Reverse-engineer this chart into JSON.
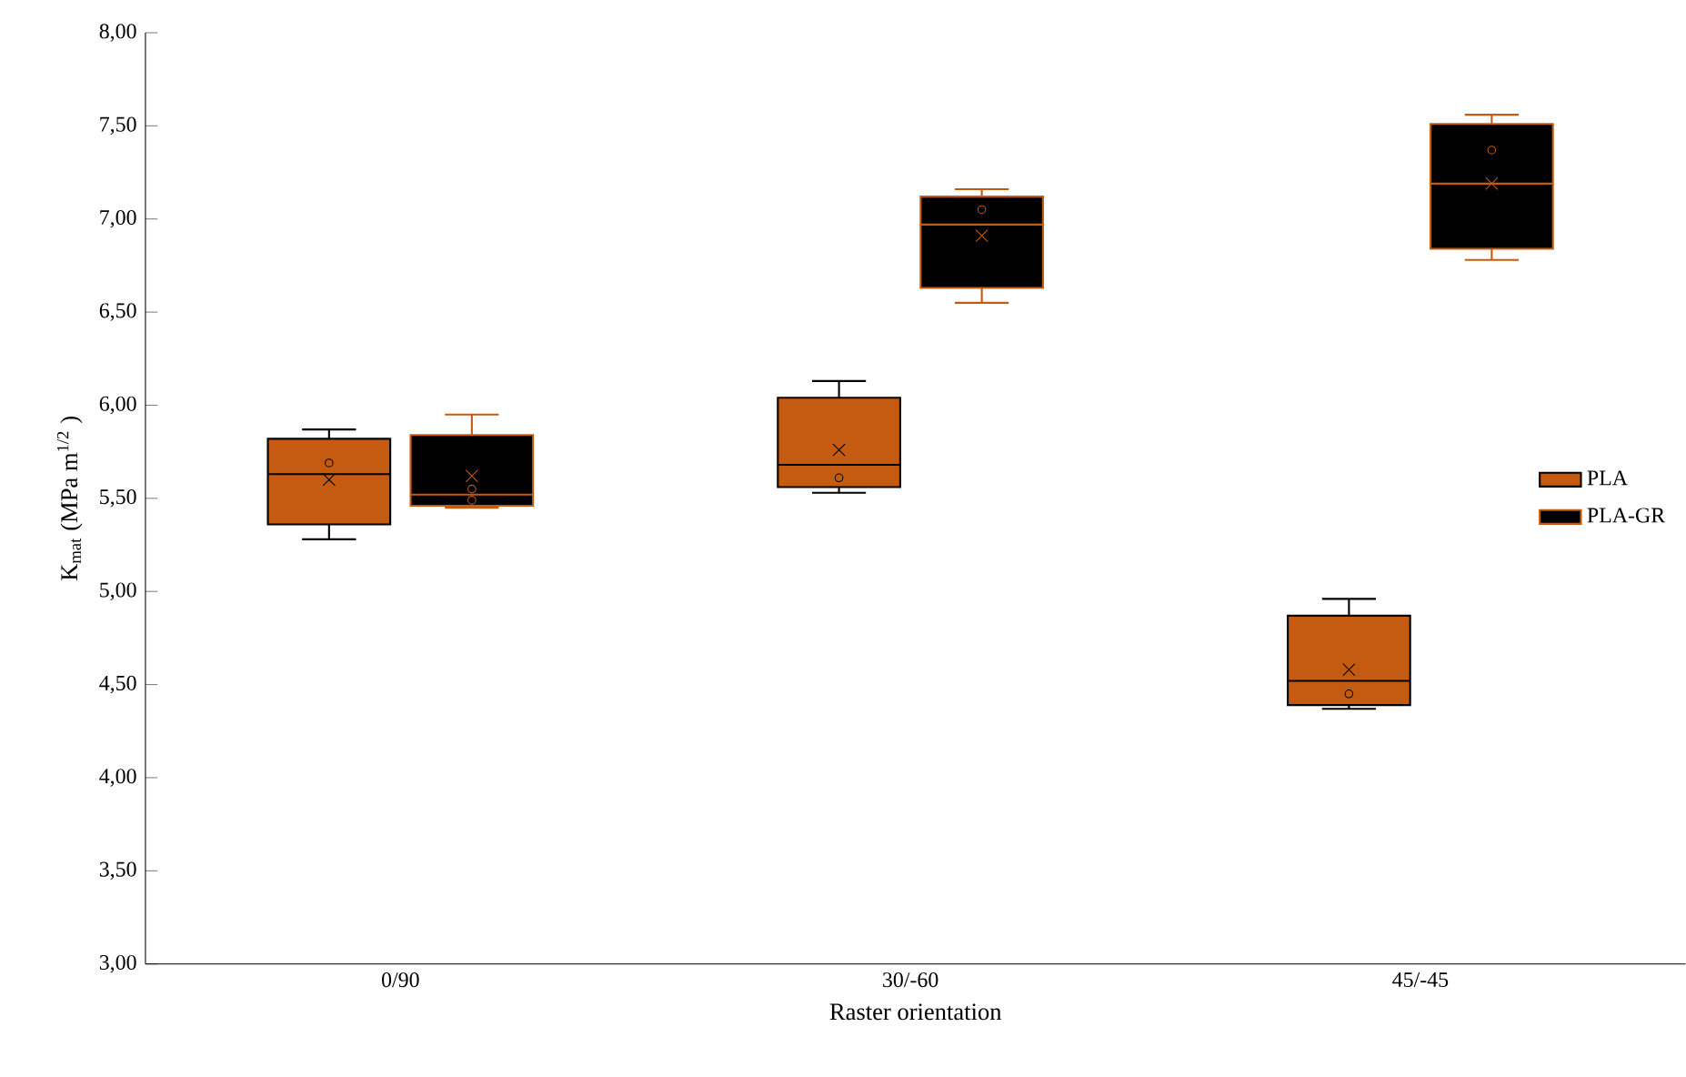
{
  "chart_data": {
    "type": "box",
    "xlabel": "Raster orientation",
    "ylabel": "K$_{mat}$ (MPa m$^{1/2}$ )",
    "categories": [
      "0/90",
      "30/-60",
      "45/-45"
    ],
    "ylim": [
      3,
      8
    ],
    "yticks": [
      {
        "value": 3,
        "label": "3,00"
      },
      {
        "value": 3.5,
        "label": "3,50"
      },
      {
        "value": 4,
        "label": "4,00"
      },
      {
        "value": 4.5,
        "label": "4,50"
      },
      {
        "value": 5,
        "label": "5,00"
      },
      {
        "value": 5.5,
        "label": "5,50"
      },
      {
        "value": 6,
        "label": "6,00"
      },
      {
        "value": 6.5,
        "label": "6,50"
      },
      {
        "value": 7,
        "label": "7,00"
      },
      {
        "value": 7.5,
        "label": "7,50"
      },
      {
        "value": 8,
        "label": "8,00"
      }
    ],
    "legend": "right",
    "grid": false,
    "series": [
      {
        "name": "PLA",
        "color": "#c55a11",
        "boxes": [
          {
            "low": 5.28,
            "q1": 5.36,
            "median": 5.63,
            "q3": 5.82,
            "high": 5.87,
            "mean": 5.6,
            "outliers": [
              5.69
            ]
          },
          {
            "low": 5.53,
            "q1": 5.56,
            "median": 5.68,
            "q3": 6.04,
            "high": 6.13,
            "mean": 5.76,
            "outliers": [
              5.61
            ]
          },
          {
            "low": 4.37,
            "q1": 4.39,
            "median": 4.52,
            "q3": 4.87,
            "high": 4.96,
            "mean": 4.58,
            "outliers": [
              4.45
            ]
          }
        ]
      },
      {
        "name": "PLA-GR",
        "color": "#000000",
        "boxes": [
          {
            "low": 5.45,
            "q1": 5.46,
            "median": 5.52,
            "q3": 5.84,
            "high": 5.95,
            "mean": 5.62,
            "outliers": [
              5.55,
              5.49
            ]
          },
          {
            "low": 6.55,
            "q1": 6.63,
            "median": 6.97,
            "q3": 7.12,
            "high": 7.16,
            "mean": 6.91,
            "outliers": [
              7.05
            ]
          },
          {
            "low": 6.78,
            "q1": 6.84,
            "median": 7.19,
            "q3": 7.51,
            "high": 7.56,
            "mean": 7.19,
            "outliers": [
              7.37
            ]
          }
        ]
      }
    ]
  }
}
